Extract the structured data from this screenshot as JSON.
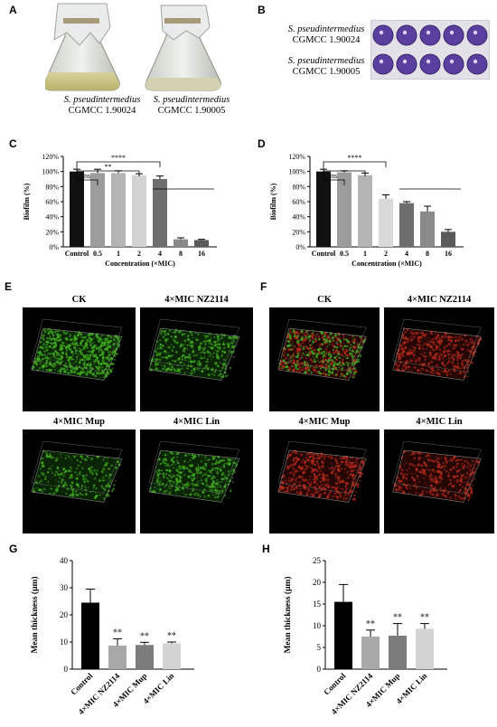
{
  "panels": {
    "A": {
      "letter": "A",
      "captions": [
        {
          "species": "S. pseudintermedius",
          "strain": "CGMCC 1.90024"
        },
        {
          "species": "S. pseudintermedius",
          "strain": "CGMCC 1.90005"
        }
      ]
    },
    "B": {
      "letter": "B",
      "rows": [
        {
          "species": "S. pseudintermedius",
          "strain": "CGMCC 1.90024"
        },
        {
          "species": "S. pseudintermedius",
          "strain": "CGMCC 1.90005"
        }
      ]
    },
    "C": {
      "letter": "C"
    },
    "D": {
      "letter": "D"
    },
    "E": {
      "letter": "E",
      "labels": [
        "CK",
        "4×MIC NZ2114",
        "4×MIC Mup",
        "4×MIC Lin"
      ]
    },
    "F": {
      "letter": "F",
      "labels": [
        "CK",
        "4×MIC NZ2114",
        "4×MIC Mup",
        "4×MIC Lin"
      ]
    },
    "G": {
      "letter": "G"
    },
    "H": {
      "letter": "H"
    }
  },
  "colors": {
    "plate_well": "#5a3f9e",
    "biofilm_green": "#3fa81f",
    "biofilm_red": "#b0281a"
  },
  "chart_data": [
    {
      "id": "C",
      "type": "bar",
      "categories": [
        "Control",
        "0.5",
        "1",
        "2",
        "4",
        "8",
        "16"
      ],
      "values": [
        100,
        98,
        98,
        95,
        90,
        10,
        9
      ],
      "errors": [
        3,
        5,
        3,
        2,
        4,
        2,
        1
      ],
      "colors": [
        "#111111",
        "#9c9c9c",
        "#b4b4b4",
        "#d2d2d2",
        "#6e6e6e",
        "#8a8a8a",
        "#5a5a5a"
      ],
      "ylabel": "Biofilm (%)",
      "xlabel": "Concentration (×MIC)",
      "ylim": [
        0,
        120
      ],
      "yticks": [
        "0%",
        "20%",
        "40%",
        "60%",
        "80%",
        "100%",
        "120%"
      ],
      "brackets": [
        {
          "from": 0,
          "to": 1,
          "label": "ns",
          "level": 1
        },
        {
          "from": 0,
          "to": 3,
          "label": "**",
          "level": 2
        },
        {
          "from": 0,
          "to": 4,
          "label": "****",
          "level": 3
        }
      ]
    },
    {
      "id": "D",
      "type": "bar",
      "categories": [
        "Control",
        "0.5",
        "1",
        "2",
        "4",
        "8",
        "16"
      ],
      "values": [
        100,
        99,
        95,
        64,
        58,
        47,
        20
      ],
      "errors": [
        3,
        2,
        3,
        5,
        2,
        7,
        3
      ],
      "colors": [
        "#111111",
        "#9c9c9c",
        "#b4b4b4",
        "#d9d9d9",
        "#6e6e6e",
        "#8a8a8a",
        "#5a5a5a"
      ],
      "ylabel": "Biofilm (%)",
      "xlabel": "Concentration (×MIC)",
      "ylim": [
        0,
        120
      ],
      "yticks": [
        "0%",
        "20%",
        "40%",
        "60%",
        "80%",
        "100%",
        "120%"
      ],
      "brackets": [
        {
          "from": 0,
          "to": 1,
          "label": "ns",
          "level": 1
        },
        {
          "from": 0,
          "to": 2,
          "label": "",
          "level": 2
        },
        {
          "from": 0,
          "to": 3,
          "label": "****",
          "level": 3
        }
      ]
    },
    {
      "id": "G",
      "type": "bar",
      "categories": [
        "Control",
        "4×MIC NZ2114",
        "4×MIC Mup",
        "4×MIC Lin"
      ],
      "values": [
        24.5,
        8.7,
        8.9,
        9.5
      ],
      "errors": [
        5,
        2.5,
        1,
        0.5
      ],
      "colors": [
        "#000000",
        "#a8a8a8",
        "#7c7c7c",
        "#d2d2d2"
      ],
      "ylabel": "Mean thickness (μm)",
      "ylim": [
        0,
        40
      ],
      "yticks": [
        "0",
        "10",
        "20",
        "30",
        "40"
      ],
      "sig": [
        "",
        "**",
        "**",
        "**"
      ]
    },
    {
      "id": "H",
      "type": "bar",
      "categories": [
        "Control",
        "4×MIC NZ2114",
        "4×MIC Mup",
        "4×MIC Lin"
      ],
      "values": [
        15.5,
        7.5,
        7.7,
        9.3
      ],
      "errors": [
        4,
        1.5,
        2.8,
        1.2
      ],
      "colors": [
        "#000000",
        "#a8a8a8",
        "#7c7c7c",
        "#d2d2d2"
      ],
      "ylabel": "Mean thickness (μm)",
      "ylim": [
        0,
        25
      ],
      "yticks": [
        "0",
        "5",
        "10",
        "15",
        "20",
        "25"
      ],
      "sig": [
        "",
        "**",
        "**",
        "**"
      ]
    }
  ]
}
